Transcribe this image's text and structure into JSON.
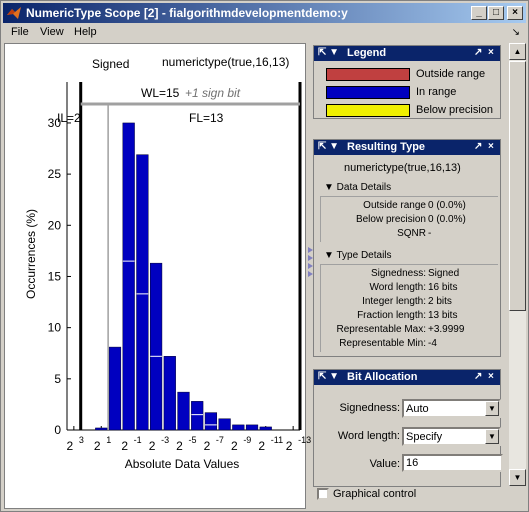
{
  "window": {
    "title": "NumericType Scope [2] - fialgorithmdevelopmentdemo:y",
    "minimize": "_",
    "maximize": "□",
    "close": "×"
  },
  "menu": {
    "items": [
      "File",
      "View",
      "Help"
    ],
    "dock": "↘"
  },
  "plot": {
    "signed_label": "Signed",
    "type_label": "numerictype(true,16,13)",
    "wl_label": "WL=15",
    "sign_bit_label": "+1 sign bit",
    "il_label": "IL=2",
    "fl_label": "FL=13"
  },
  "chart_data": {
    "type": "bar",
    "xlabel": "Absolute Data Values",
    "ylabel": "Occurrences (%)",
    "ylim": [
      0,
      34
    ],
    "yticks": [
      0,
      5,
      10,
      15,
      20,
      25,
      30
    ],
    "xtick_exponents": [
      "3",
      "1",
      "-1",
      "-3",
      "-5",
      "-7",
      "-9",
      "-11",
      "-13"
    ],
    "xtick_base": "2",
    "bins": [
      3,
      2,
      1,
      0,
      -1,
      -2,
      -3,
      -4,
      -5,
      -6,
      -7,
      -8,
      -9,
      -10,
      -11,
      -12,
      -13
    ],
    "values": [
      0,
      0,
      0.2,
      8.1,
      30.0,
      26.9,
      16.3,
      7.2,
      3.7,
      2.8,
      1.7,
      1.1,
      0.5,
      0.5,
      0.3,
      0,
      0
    ],
    "inner_marks": [
      0,
      0,
      0,
      0,
      16.5,
      13.3,
      7.2,
      0,
      0,
      1.5,
      0.5,
      0,
      0,
      0,
      0,
      0,
      0
    ],
    "colors": {
      "in_range": "#0000c0",
      "grid_line": "#a0a0a0"
    }
  },
  "legend": {
    "title": "Legend",
    "items": [
      {
        "label": "Outside range",
        "color": "#c04040"
      },
      {
        "label": "In range",
        "color": "#0000c0"
      },
      {
        "label": "Below precision",
        "color": "#f0f000"
      }
    ]
  },
  "resulting_type": {
    "title": "Resulting Type",
    "type": "numerictype(true,16,13)",
    "data_details_title": "▼ Data Details",
    "data_details": [
      {
        "label": "Outside range",
        "value": "0 (0.0%)"
      },
      {
        "label": "Below precision",
        "value": "0 (0.0%)"
      },
      {
        "label": "SQNR",
        "value": "-"
      }
    ],
    "type_details_title": "▼ Type Details",
    "type_details": [
      {
        "label": "Signedness:",
        "value": "Signed"
      },
      {
        "label": "Word length:",
        "value": "16 bits"
      },
      {
        "label": "Integer length:",
        "value": "2 bits"
      },
      {
        "label": "Fraction length:",
        "value": "13 bits"
      },
      {
        "label": "Representable Max:",
        "value": "+3.9999"
      },
      {
        "label": "Representable Min:",
        "value": "-4"
      }
    ]
  },
  "bit_allocation": {
    "title": "Bit Allocation",
    "signedness_label": "Signedness:",
    "signedness_value": "Auto",
    "word_length_label": "Word length:",
    "word_length_value": "Specify",
    "value_label": "Value:",
    "value_value": "16"
  },
  "graphical_control": "Graphical control",
  "panel_buttons": {
    "pin": "⇱ ▼",
    "undock": "↗",
    "close": "×"
  }
}
